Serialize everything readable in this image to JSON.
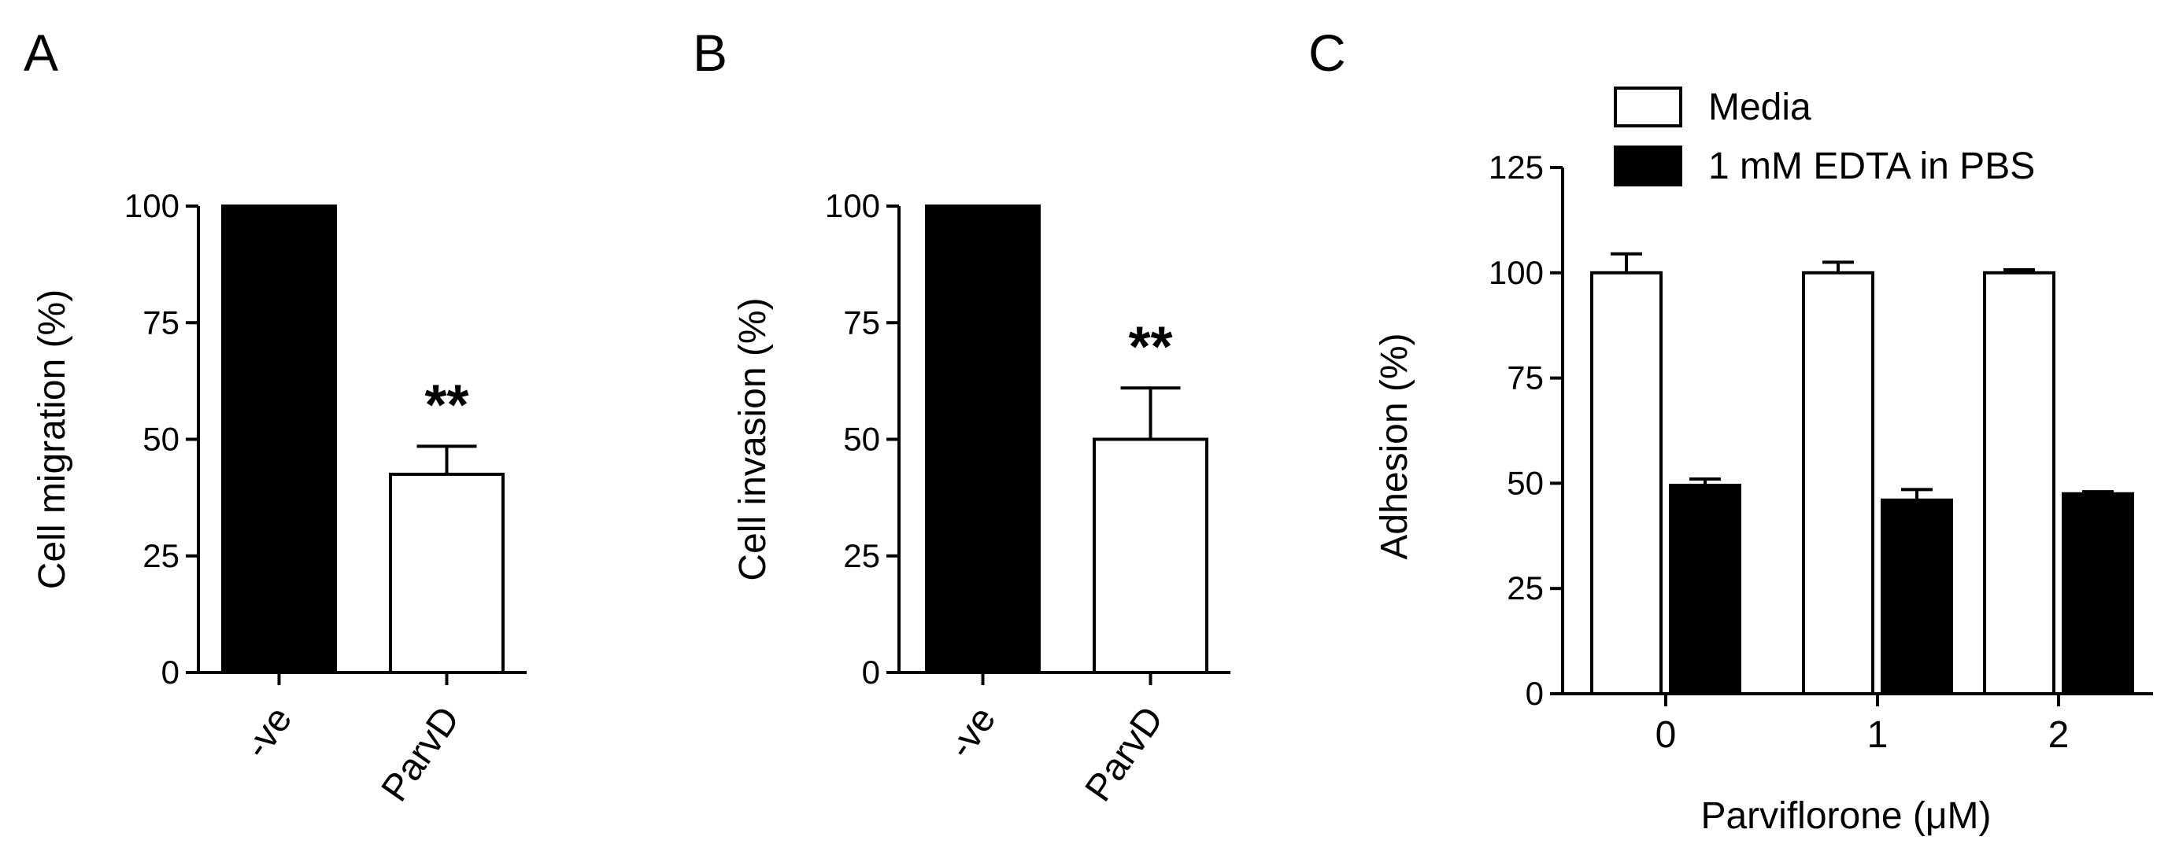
{
  "chart_data": [
    {
      "panel": "A",
      "type": "bar",
      "categories": [
        "-ve",
        "ParvD"
      ],
      "values": [
        100,
        42.5
      ],
      "errors": [
        0,
        6
      ],
      "fills": [
        "#000000",
        "#ffffff"
      ],
      "significance": [
        "",
        "**"
      ],
      "ylabel": "Cell migration (%)",
      "ylim": [
        0,
        100
      ],
      "yticks": [
        0,
        25,
        50,
        75,
        100
      ],
      "title": "",
      "xlabel": ""
    },
    {
      "panel": "B",
      "type": "bar",
      "categories": [
        "-ve",
        "ParvD"
      ],
      "values": [
        100,
        50
      ],
      "errors": [
        0,
        11
      ],
      "fills": [
        "#000000",
        "#ffffff"
      ],
      "significance": [
        "",
        "**"
      ],
      "ylabel": "Cell invasion (%)",
      "ylim": [
        0,
        100
      ],
      "yticks": [
        0,
        25,
        50,
        75,
        100
      ],
      "title": "",
      "xlabel": ""
    },
    {
      "panel": "C",
      "type": "bar",
      "categories": [
        "0",
        "1",
        "2"
      ],
      "series": [
        {
          "name": "Media",
          "values": [
            100,
            100,
            100
          ],
          "errors": [
            4.5,
            2.5,
            0.7
          ],
          "fill": "#ffffff"
        },
        {
          "name": "1 mM EDTA in PBS",
          "values": [
            49.5,
            46,
            47.5
          ],
          "errors": [
            1.5,
            2.5,
            0.5
          ],
          "fill": "#000000"
        }
      ],
      "ylabel": "Adhesion (%)",
      "xlabel": "Parviflorone (μM)",
      "ylim": [
        0,
        125
      ],
      "yticks": [
        0,
        25,
        50,
        75,
        100,
        125
      ],
      "legend_position": "top",
      "title": ""
    }
  ]
}
